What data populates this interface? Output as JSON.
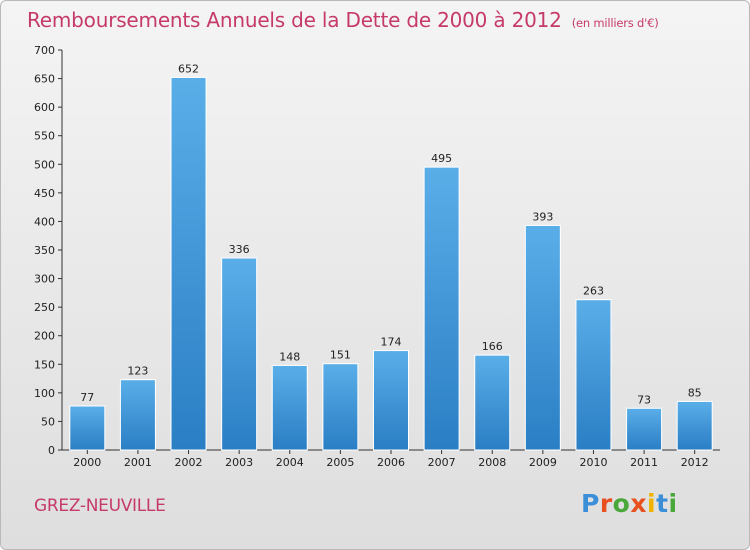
{
  "header": {
    "title": "Remboursements Annuels de la Dette de 2000 à 2012",
    "subtitle": "(en milliers d'€)"
  },
  "footer": {
    "place": "GREZ-NEUVILLE",
    "logo_text": "Proxiti",
    "logo_colors": [
      "#3a8fd8",
      "#e8501f",
      "#4aa83a",
      "#e8501f",
      "#f0b400",
      "#3a8fd8",
      "#4aa83a"
    ]
  },
  "colors": {
    "bar_light": "#5aaee8",
    "bar_dark": "#2a7ec4",
    "axis": "#333333",
    "grid": "#c8c8c8",
    "text": "#222222"
  },
  "chart_data": {
    "type": "bar",
    "title": "Remboursements Annuels de la Dette de 2000 à 2012",
    "subtitle": "(en milliers d'€)",
    "categories": [
      "2000",
      "2001",
      "2002",
      "2003",
      "2004",
      "2005",
      "2006",
      "2007",
      "2008",
      "2009",
      "2010",
      "2011",
      "2012"
    ],
    "values": [
      77,
      123,
      652,
      336,
      148,
      151,
      174,
      495,
      166,
      393,
      263,
      73,
      85
    ],
    "ylim": [
      0,
      700
    ],
    "yticks": [
      0,
      50,
      100,
      150,
      200,
      250,
      300,
      350,
      400,
      450,
      500,
      550,
      600,
      650,
      700
    ],
    "xlabel": "",
    "ylabel": "",
    "grid": false,
    "data_labels": true
  }
}
